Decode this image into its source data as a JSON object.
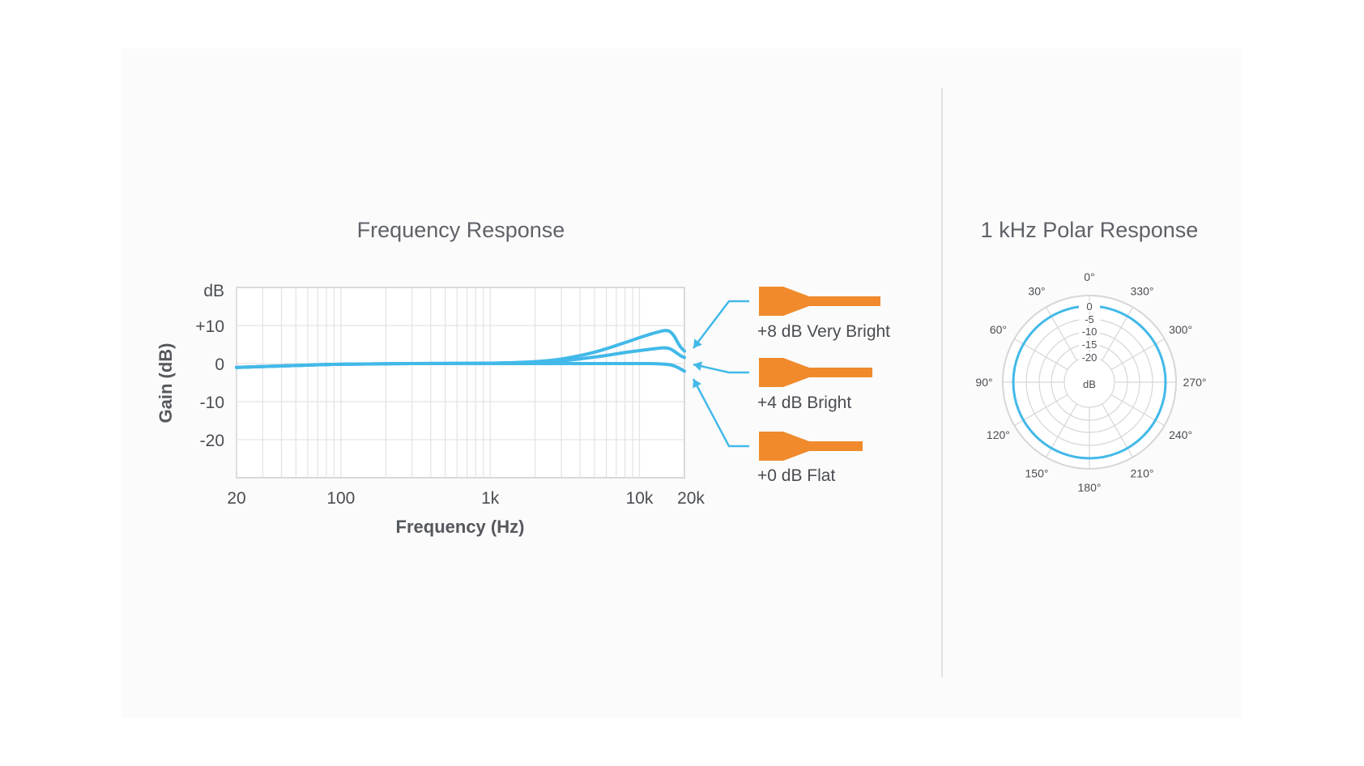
{
  "chart_data": [
    {
      "type": "line",
      "title": "Frequency Response",
      "xlabel": "Frequency (Hz)",
      "ylabel": "Gain (dB)",
      "y_unit_label": "dB",
      "x_scale": "log",
      "xlim": [
        20,
        20000
      ],
      "ylim": [
        -30,
        20
      ],
      "x_ticks": [
        {
          "value": 20,
          "label": "20"
        },
        {
          "value": 100,
          "label": "100"
        },
        {
          "value": 1000,
          "label": "1k"
        },
        {
          "value": 10000,
          "label": "10k"
        },
        {
          "value": 20000,
          "label": "20k"
        }
      ],
      "y_ticks": [
        {
          "value": 10,
          "label": "+10"
        },
        {
          "value": 0,
          "label": "0"
        },
        {
          "value": -10,
          "label": "-10"
        },
        {
          "value": -20,
          "label": "-20"
        }
      ],
      "grid": true,
      "line_color": "#42b9e8",
      "series": [
        {
          "name": "+8 dB Very Bright",
          "x": [
            20,
            50,
            100,
            300,
            1000,
            2000,
            3000,
            5000,
            8000,
            10000,
            12000,
            14000,
            15000,
            16000,
            17000,
            18000,
            19000,
            20000
          ],
          "y": [
            -1,
            -0.5,
            -0.2,
            0,
            0.1,
            0.5,
            1.2,
            3,
            5.5,
            6.8,
            7.8,
            8.5,
            8.7,
            8.4,
            7.3,
            5.6,
            4.2,
            3.3
          ]
        },
        {
          "name": "+4 dB Bright",
          "x": [
            20,
            50,
            100,
            300,
            1000,
            2000,
            3000,
            5000,
            8000,
            10000,
            12000,
            14000,
            15000,
            16000,
            17000,
            18000,
            19000,
            20000
          ],
          "y": [
            -1,
            -0.5,
            -0.2,
            0,
            0.1,
            0.3,
            0.7,
            1.7,
            2.9,
            3.4,
            3.8,
            4.1,
            4.1,
            3.9,
            3.3,
            2.6,
            2,
            1.6
          ]
        },
        {
          "name": "+0 dB Flat",
          "x": [
            20,
            50,
            100,
            300,
            1000,
            3000,
            5000,
            8000,
            10000,
            12000,
            14000,
            15000,
            16000,
            17000,
            18000,
            19000,
            20000
          ],
          "y": [
            -1,
            -0.5,
            -0.2,
            0,
            0,
            0,
            0,
            0,
            0,
            0,
            -0.1,
            -0.2,
            -0.3,
            -0.6,
            -1,
            -1.5,
            -2
          ]
        }
      ],
      "legend": {
        "placement": "right",
        "items": [
          "+8 dB Very Bright",
          "+4 dB Bright",
          "+0 dB Flat"
        ],
        "icon": "orange-microphone-insert-icon",
        "icon_color": "#f08a2c"
      }
    },
    {
      "type": "polar",
      "title": "1 kHz Polar Response",
      "center_label": "dB",
      "line_color": "#42b9e8",
      "grid": true,
      "angle_labels": [
        "0°",
        "330°",
        "300°",
        "270°",
        "240°",
        "210°",
        "180°",
        "150°",
        "120°",
        "90°",
        "60°",
        "30°"
      ],
      "ring_labels": [
        "0",
        "-5",
        "-10",
        "-15",
        "-20"
      ],
      "radial_range_db": [
        -25,
        0
      ],
      "series": [
        {
          "pattern": "omnidirectional",
          "angles_deg": [
            0,
            30,
            60,
            90,
            120,
            150,
            180,
            210,
            240,
            270,
            300,
            330
          ],
          "values_db": [
            0,
            0,
            0,
            0,
            0,
            0,
            0,
            0,
            0,
            0,
            0,
            0
          ]
        }
      ]
    }
  ]
}
